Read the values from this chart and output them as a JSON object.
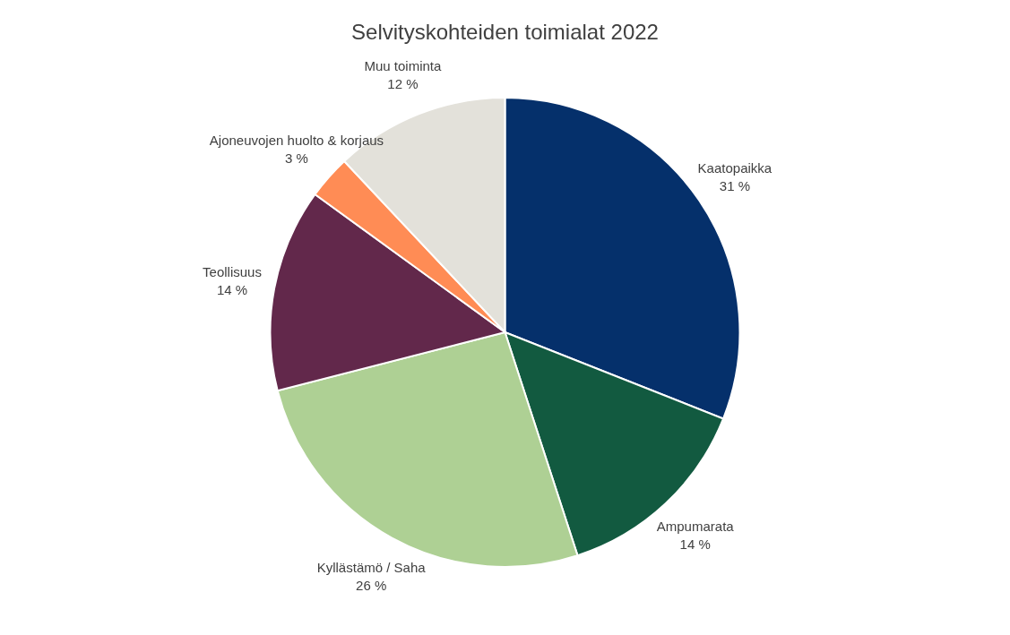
{
  "chart_data": {
    "type": "pie",
    "title": "Selvityskohteiden toimialat 2022",
    "categories": [
      "Kaatopaikka",
      "Ampumarata",
      "Kyllästämö / Saha",
      "Teollisuus",
      "Ajoneuvojen huolto & korjaus",
      "Muu toiminta"
    ],
    "values": [
      31,
      14,
      26,
      14,
      3,
      12
    ],
    "value_labels": [
      "31 %",
      "14 %",
      "26 %",
      "14 %",
      "3 %",
      "12 %"
    ],
    "colors": [
      "#05306b",
      "#125a40",
      "#aed094",
      "#62284b",
      "#ff8c55",
      "#e3e1da"
    ],
    "legend": false
  }
}
